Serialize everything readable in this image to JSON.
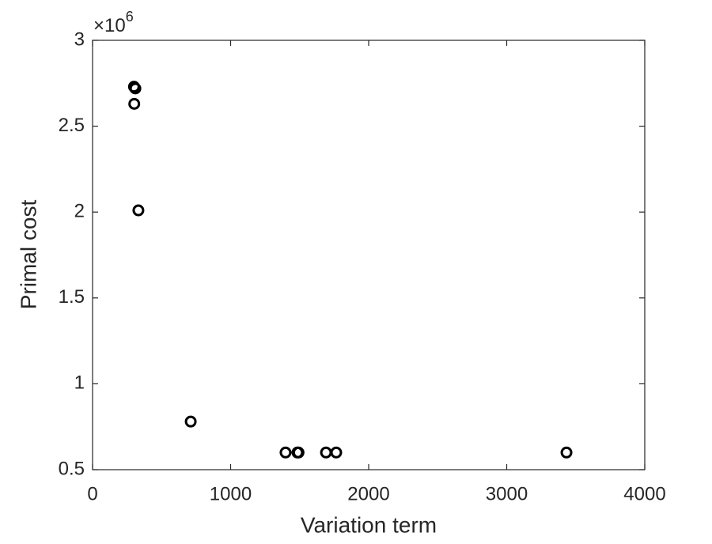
{
  "chart_data": {
    "type": "scatter",
    "x_label": "Variation term",
    "y_label": "Primal cost",
    "y_multiplier": {
      "base": "×10",
      "exponent": "6"
    },
    "x": [
      300,
      310,
      302,
      332,
      711,
      1398,
      1484,
      1492,
      1691,
      1765,
      3433
    ],
    "values": [
      2.73,
      2.72,
      2.63,
      2.01,
      0.78,
      0.6,
      0.6,
      0.6,
      0.6,
      0.6,
      0.6
    ],
    "color": "#000000",
    "xlim": [
      0,
      4000
    ],
    "xticks": [
      0,
      1000,
      2000,
      3000,
      4000
    ],
    "ylim": [
      0.5,
      3
    ],
    "yticks": [
      0.5,
      1,
      1.5,
      2,
      2.5,
      3
    ],
    "grid": false
  }
}
